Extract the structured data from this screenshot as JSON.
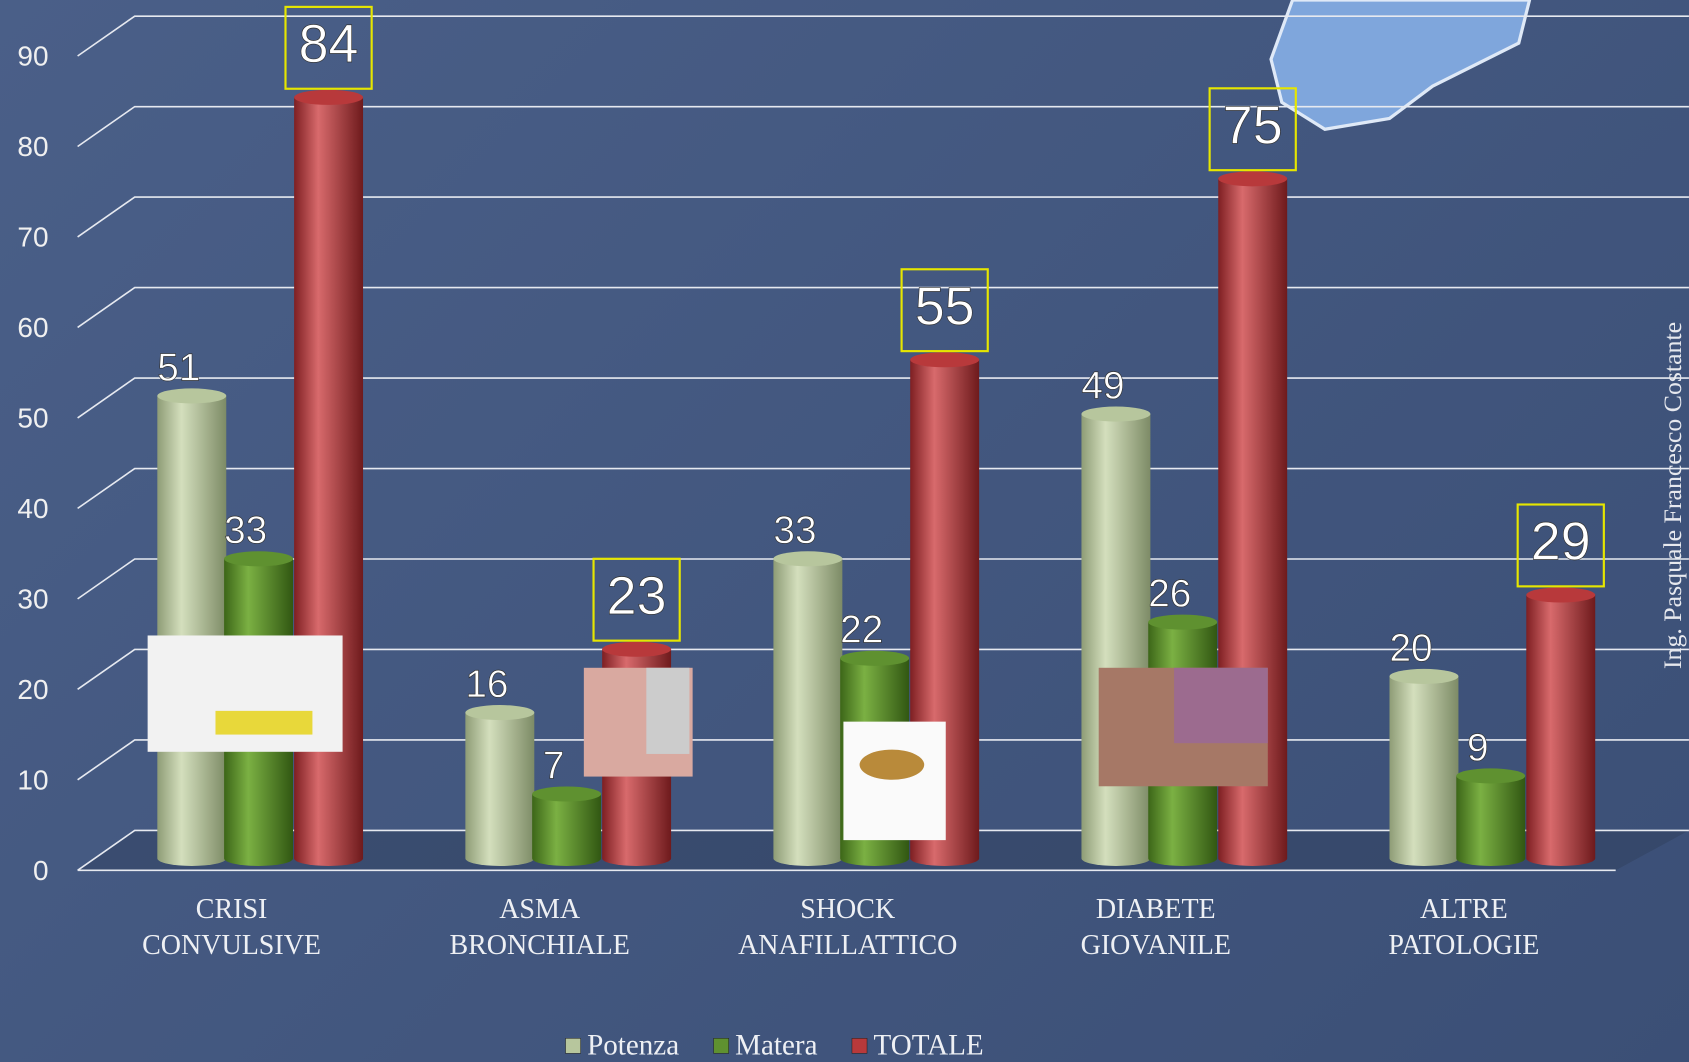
{
  "chart_data": {
    "type": "bar",
    "categories": [
      "CRISI CONVULSIVE",
      "ASMA BRONCHIALE",
      "SHOCK ANAFILLATTICO",
      "DIABETE GIOVANILE",
      "ALTRE PATOLOGIE"
    ],
    "series": [
      {
        "name": "Potenza",
        "color": "#b7c69d",
        "values": [
          51,
          16,
          33,
          49,
          20
        ]
      },
      {
        "name": "Matera",
        "color": "#5f9130",
        "values": [
          33,
          7,
          22,
          26,
          9
        ]
      },
      {
        "name": "TOTALE",
        "color": "#b8393b",
        "values": [
          84,
          23,
          55,
          75,
          29
        ]
      }
    ],
    "ylim": [
      0,
      90
    ],
    "yticks": [
      0,
      10,
      20,
      30,
      40,
      50,
      60,
      70,
      80,
      90
    ],
    "grid": true,
    "legend": "bottom",
    "watermark": "Ing. Pasquale Francesco Costante"
  }
}
